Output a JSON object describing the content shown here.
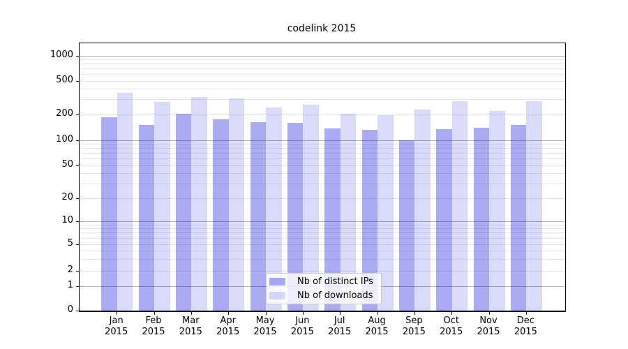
{
  "title": "codelink 2015",
  "colors": {
    "distinct_ips_fill": "rgba(0,0,220,0.33)",
    "downloads_fill": "rgba(0,0,220,0.145)",
    "distinct_ips_hex": "#aaaaee",
    "downloads_hex": "#dcdcf8",
    "major_gridline": "#b3b3b3",
    "minor_gridline": "#e6e6e6",
    "axis_spine": "#000000"
  },
  "chart_data": {
    "type": "bar",
    "title": "codelink 2015",
    "categories": [
      "Jan 2015",
      "Feb 2015",
      "Mar 2015",
      "Apr 2015",
      "May 2015",
      "Jun 2015",
      "Jul 2015",
      "Aug 2015",
      "Sep 2015",
      "Oct 2015",
      "Nov 2015",
      "Dec 2015"
    ],
    "series": [
      {
        "name": "Nb of distinct IPs",
        "values": [
          185,
          150,
          205,
          175,
          162,
          159,
          138,
          133,
          100,
          136,
          141,
          151
        ]
      },
      {
        "name": "Nb of downloads",
        "values": [
          365,
          280,
          325,
          310,
          240,
          260,
          205,
          198,
          230,
          285,
          220,
          290
        ]
      }
    ],
    "y_axis": {
      "scale": "symlog",
      "tick_labels": [
        0,
        1,
        2,
        5,
        10,
        20,
        50,
        100,
        200,
        500,
        1000
      ],
      "major_grid_values": [
        1,
        10,
        100,
        1000
      ],
      "ylim": [
        0,
        1410
      ]
    },
    "x_axis": {
      "tick_label_lines": 2
    },
    "grid": true,
    "legend_position": "lower center"
  }
}
